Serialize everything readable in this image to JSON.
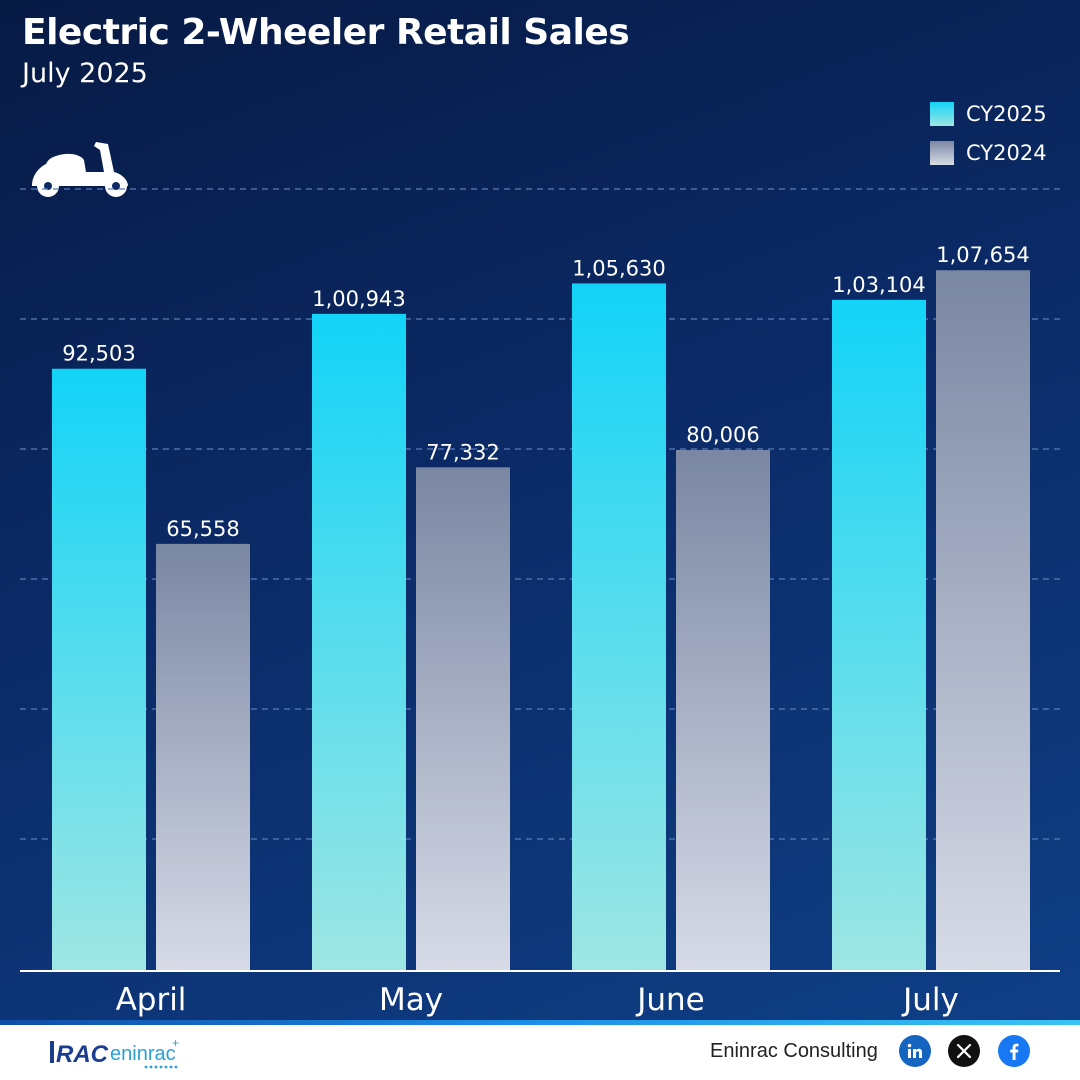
{
  "chart_data": {
    "type": "bar",
    "title": "Electric 2-Wheeler Retail Sales",
    "subtitle": "July 2025",
    "categories": [
      "April",
      "May",
      "June",
      "July"
    ],
    "series": [
      {
        "name": "CY2025",
        "values": [
          92503,
          100943,
          105630,
          103104
        ],
        "labels": [
          "92,503",
          "1,00,943",
          "1,05,630",
          "1,03,104"
        ]
      },
      {
        "name": "CY2024",
        "values": [
          65558,
          77332,
          80006,
          107654
        ],
        "labels": [
          "65,558",
          "77,332",
          "80,006",
          "1,07,654"
        ]
      }
    ],
    "ylim": [
      0,
      120000
    ],
    "grid": true,
    "legend_position": "top-right",
    "colors": {
      "CY2025_top": "#12d3f7",
      "CY2025_bottom": "#9ee6e3",
      "CY2024_top": "#7a87a3",
      "CY2024_bottom": "#d7dbe7"
    }
  },
  "footer": {
    "brand": "Eninrac Consulting",
    "logo_text": "RACeninrac",
    "social_icons": [
      "linkedin-icon",
      "x-icon",
      "facebook-icon"
    ]
  }
}
